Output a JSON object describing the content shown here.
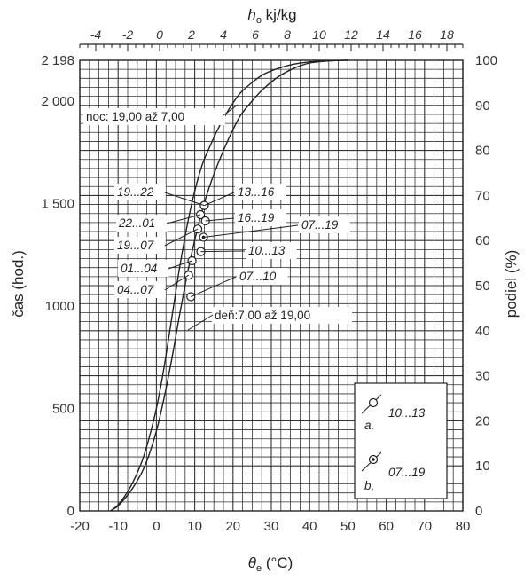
{
  "chart_data": {
    "type": "line",
    "title": "",
    "xlabel": "θe (°C)",
    "xlabel_symbol": "θ",
    "xlabel_sub": "e",
    "xlabel_unit": " (°C)",
    "x_ticks": [
      -20,
      -10,
      0,
      10,
      20,
      30,
      40,
      50,
      60,
      70,
      80
    ],
    "xlim": [
      -20,
      80
    ],
    "top_xlabel": "ho kj/kg",
    "top_xlabel_symbol": "h",
    "top_xlabel_sub": "o",
    "top_xlabel_unit": " kj/kg",
    "top_ticks": [
      -4,
      -2,
      0,
      2,
      4,
      6,
      8,
      10,
      12,
      14,
      16,
      18
    ],
    "top_xlim": [
      -5,
      19
    ],
    "ylabel": "čas (hod.)",
    "y_ticks": [
      "0",
      "500",
      "1000",
      "1 500",
      "2 000",
      "2 198"
    ],
    "y_tick_values": [
      0,
      500,
      1000,
      1500,
      2000,
      2198
    ],
    "ylim": [
      0,
      2198
    ],
    "y2label": "podiel (%)",
    "y2_ticks": [
      0,
      10,
      20,
      30,
      40,
      50,
      60,
      70,
      80,
      90,
      100
    ],
    "y2lim": [
      0,
      100
    ],
    "grid": true,
    "series": [
      {
        "name": "noc: 19,00 až 7,00",
        "x": [
          -12,
          -10,
          -7,
          -4,
          -2,
          0,
          2,
          4,
          6,
          8,
          10,
          12,
          14,
          16,
          18,
          20,
          22,
          25,
          28,
          32,
          36,
          40,
          45,
          50
        ],
        "y": [
          0,
          30,
          110,
          230,
          350,
          500,
          700,
          940,
          1180,
          1390,
          1560,
          1690,
          1780,
          1860,
          1930,
          1990,
          2040,
          2090,
          2130,
          2160,
          2180,
          2190,
          2196,
          2198
        ]
      },
      {
        "name": "deň:7,00 až 19,00",
        "x": [
          -12,
          -10,
          -7,
          -4,
          -2,
          0,
          2,
          4,
          6,
          8,
          10,
          12,
          14,
          16,
          18,
          20,
          22,
          25,
          28,
          32,
          36,
          40,
          45,
          50
        ],
        "y": [
          0,
          25,
          90,
          180,
          270,
          390,
          550,
          740,
          950,
          1150,
          1320,
          1470,
          1590,
          1690,
          1780,
          1860,
          1930,
          2000,
          2060,
          2120,
          2160,
          2185,
          2195,
          2198
        ]
      }
    ],
    "points": [
      {
        "label": "19...22",
        "x": 12.5,
        "y": 1490,
        "type": "a"
      },
      {
        "label": "13...16",
        "x": 12.5,
        "y": 1490,
        "type": "a"
      },
      {
        "label": "22...01",
        "x": 11.5,
        "y": 1445,
        "type": "a"
      },
      {
        "label": "16...19",
        "x": 12.8,
        "y": 1415,
        "type": "a"
      },
      {
        "label": "19...07",
        "x": 10.8,
        "y": 1375,
        "type": "a"
      },
      {
        "label": "07...19",
        "x": 12.3,
        "y": 1335,
        "type": "b"
      },
      {
        "label": "10...13",
        "x": 11.6,
        "y": 1265,
        "type": "a"
      },
      {
        "label": "01...04",
        "x": 9.3,
        "y": 1220,
        "type": "a"
      },
      {
        "label": "04...07",
        "x": 8.4,
        "y": 1150,
        "type": "a"
      },
      {
        "label": "07...10",
        "x": 9.0,
        "y": 1045,
        "type": "a"
      }
    ],
    "annotations": {
      "night": "noc: 19,00 až 7,00",
      "day": "deň:7,00 až 19,00"
    },
    "legend": {
      "placement": "bottom-right",
      "a_label": "a,",
      "a_range": "10...13",
      "b_label": "b,",
      "b_range": "07...19"
    }
  }
}
